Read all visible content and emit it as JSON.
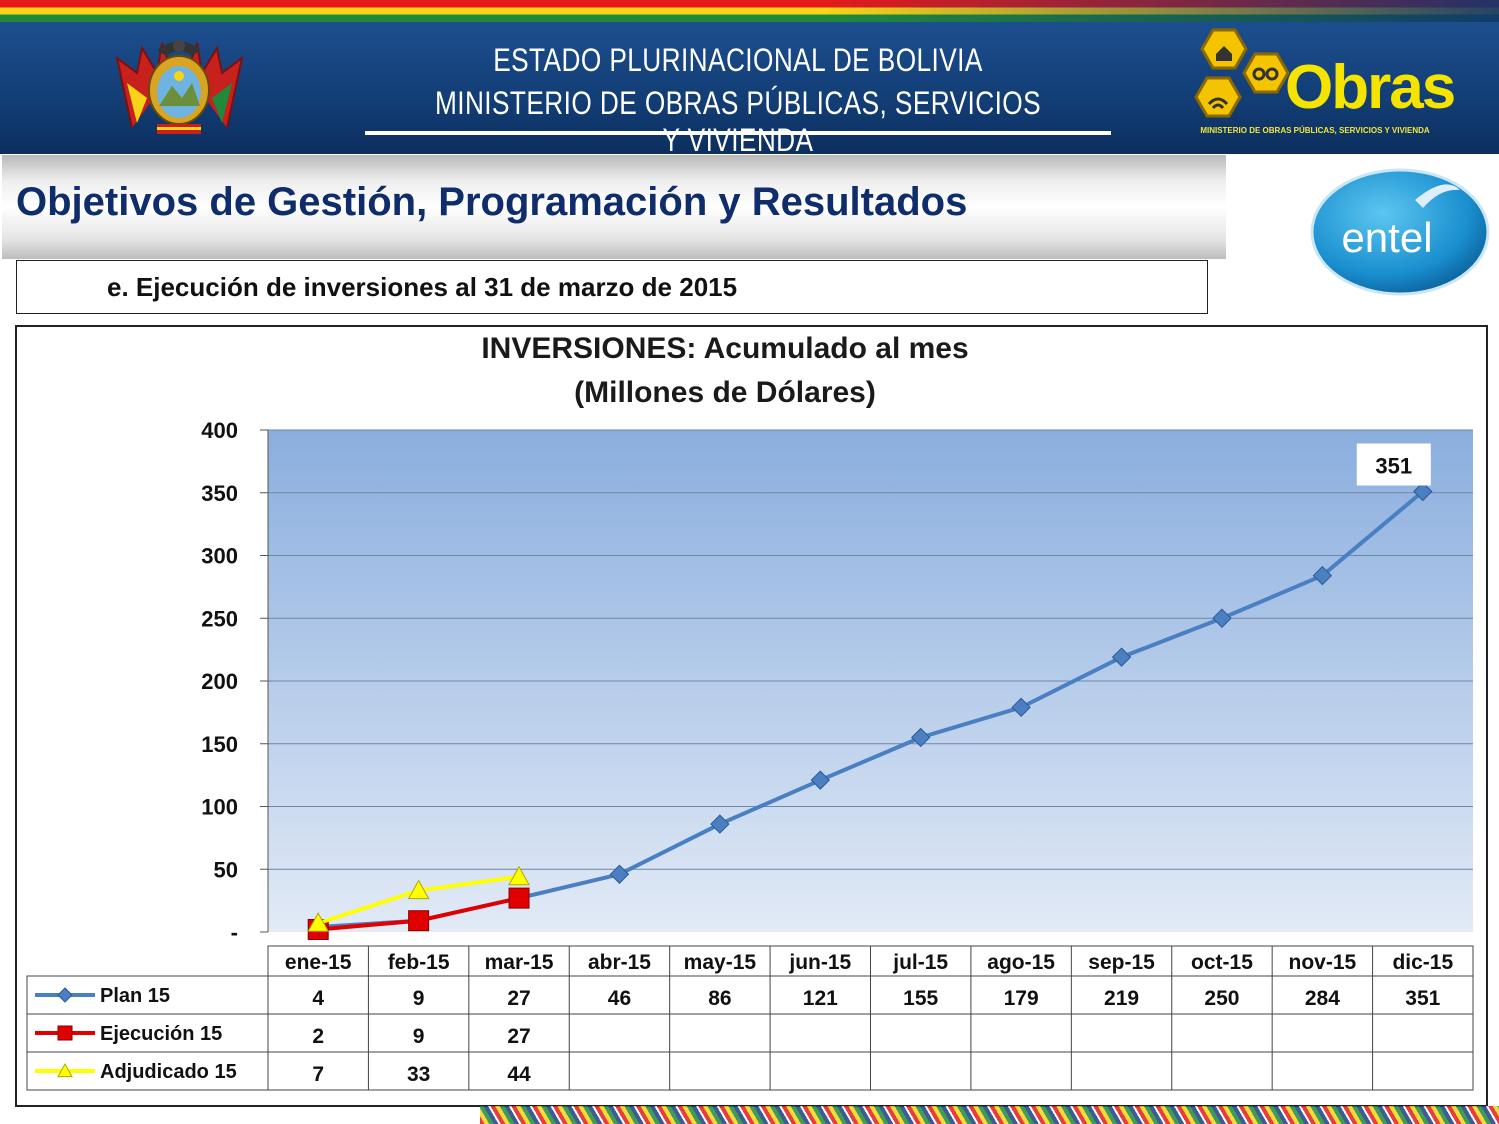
{
  "header": {
    "line1": "ESTADO PLURINACIONAL DE BOLIVIA",
    "line2": "MINISTERIO DE OBRAS PÚBLICAS, SERVICIOS Y VIVIENDA",
    "obras_logo_text": "Obras",
    "obras_logo_subtitle": "MINISTERIO DE OBRAS PÚBLICAS, SERVICIOS Y VIVIENDA"
  },
  "slide": {
    "title": "Objetivos de Gestión, Programación y Resultados",
    "subtitle": "e. Ejecución de inversiones al 31 de marzo de 2015",
    "entel_logo_text": "entel"
  },
  "colors": {
    "plan": "#4a7fc1",
    "ejecucion": "#e00000",
    "adjudicado": "#ffff00",
    "header_blue": "#123d75",
    "title_blue": "#0f2d6b"
  },
  "chart_data": {
    "type": "line",
    "title": "INVERSIONES: Acumulado al mes",
    "subtitle": "(Millones  de Dólares)",
    "categories": [
      "ene-15",
      "feb-15",
      "mar-15",
      "abr-15",
      "may-15",
      "jun-15",
      "jul-15",
      "ago-15",
      "sep-15",
      "oct-15",
      "nov-15",
      "dic-15"
    ],
    "ylim": [
      0,
      400
    ],
    "yticks": [
      0,
      50,
      100,
      150,
      200,
      250,
      300,
      350,
      400
    ],
    "ytick_labels": [
      "-",
      "50",
      "100",
      "150",
      "200",
      "250",
      "300",
      "350",
      "400"
    ],
    "grid": true,
    "legend": "data-table",
    "series": [
      {
        "name": "Plan 15",
        "marker": "diamond",
        "color": "#4a7fc1",
        "values": [
          4,
          9,
          27,
          46,
          86,
          121,
          155,
          179,
          219,
          250,
          284,
          351
        ]
      },
      {
        "name": "Ejecución 15",
        "marker": "square",
        "color": "#e00000",
        "values": [
          2,
          9,
          27,
          null,
          null,
          null,
          null,
          null,
          null,
          null,
          null,
          null
        ]
      },
      {
        "name": "Adjudicado 15",
        "marker": "triangle",
        "color": "#ffff00",
        "values": [
          7,
          33,
          44,
          null,
          null,
          null,
          null,
          null,
          null,
          null,
          null,
          null
        ]
      }
    ],
    "annotation": {
      "series": "Plan 15",
      "category": "dic-15",
      "label": "351"
    }
  }
}
